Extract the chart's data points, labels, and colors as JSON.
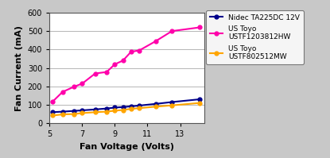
{
  "title": "",
  "xlabel": "Fan Voltage (Volts)",
  "ylabel": "Fan Current (mA)",
  "xlim": [
    5,
    14.5
  ],
  "ylim": [
    0,
    600
  ],
  "yticks": [
    0,
    100,
    200,
    300,
    400,
    500,
    600
  ],
  "xticks": [
    5,
    7,
    9,
    11,
    13
  ],
  "background_color": "#c8c8c8",
  "plot_bg_color": "#ffffff",
  "series": [
    {
      "label": "Nidec TA225DC 12V",
      "color": "#00008B",
      "marker": "o",
      "markersize": 3.5,
      "linewidth": 1.5,
      "x": [
        5.2,
        5.8,
        6.5,
        7.0,
        7.8,
        8.5,
        9.0,
        9.5,
        10.0,
        10.5,
        11.5,
        12.5,
        14.2
      ],
      "y": [
        60,
        63,
        67,
        70,
        75,
        80,
        85,
        88,
        92,
        96,
        105,
        115,
        130
      ]
    },
    {
      "label": "US Toyo\nUSTF1203812HW",
      "color": "#FF00AA",
      "marker": "o",
      "markersize": 3.5,
      "linewidth": 1.5,
      "x": [
        5.2,
        5.8,
        6.5,
        7.0,
        7.8,
        8.5,
        9.0,
        9.5,
        10.0,
        10.5,
        11.5,
        12.5,
        14.2
      ],
      "y": [
        118,
        170,
        198,
        215,
        270,
        278,
        320,
        340,
        388,
        395,
        445,
        500,
        520
      ]
    },
    {
      "label": "US Toyo\nUSTF802512MW",
      "color": "#FFA500",
      "marker": "o",
      "markersize": 3.5,
      "linewidth": 1.5,
      "x": [
        5.2,
        5.8,
        6.5,
        7.0,
        7.8,
        8.5,
        9.0,
        9.5,
        10.0,
        10.5,
        11.5,
        12.5,
        14.2
      ],
      "y": [
        42,
        48,
        50,
        55,
        60,
        63,
        68,
        72,
        78,
        82,
        90,
        97,
        110
      ]
    }
  ],
  "legend_fontsize": 6.5,
  "axis_label_fontsize": 8,
  "tick_fontsize": 7,
  "grid_color": "#aaaaaa",
  "spine_color": "#555555"
}
